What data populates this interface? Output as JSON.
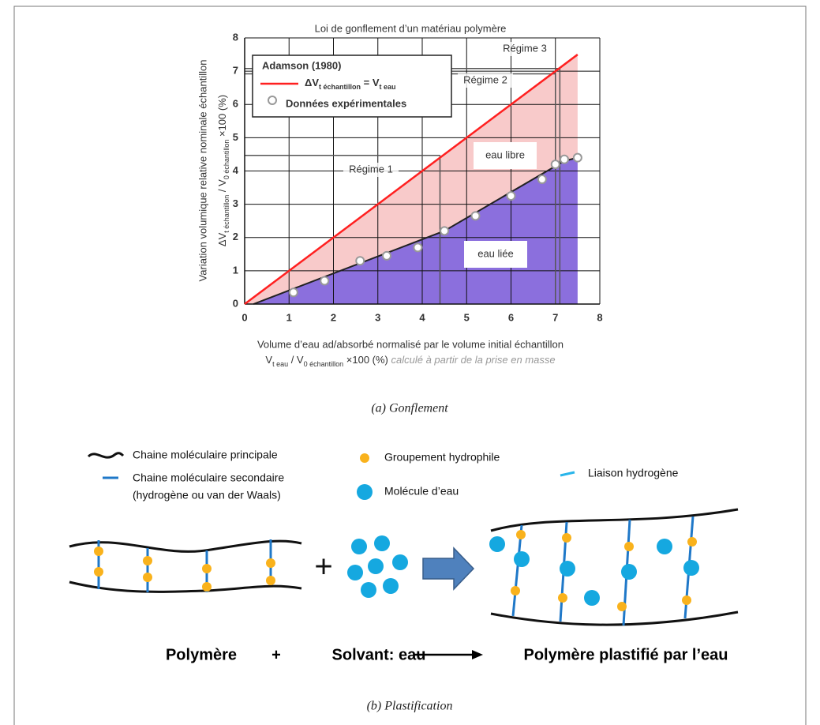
{
  "chart_data": {
    "type": "line",
    "title": "Loi de gonflement d’un matériau polymère",
    "y_label": [
      "Variation volumique relative nominale échantillon",
      [
        {
          "text": "ΔV"
        },
        {
          "text": "t échantillon",
          "sub": true
        },
        {
          "text": " / V"
        },
        {
          "text": "0 échantillon",
          "sub": true
        },
        {
          "text": " ×100 (%)"
        }
      ]
    ],
    "x_label": [
      "Volume d’eau ad/absorbé normalisé par le volume initial échantillon",
      [
        {
          "text": "V"
        },
        {
          "text": "t eau",
          "sub": true
        },
        {
          "text": " / V"
        },
        {
          "text": "0 échantillon",
          "sub": true
        },
        {
          "text": " ×100 (%) "
        }
      ]
    ],
    "x_label_note": "calculé à partir de la prise en masse",
    "xlim": [
      0,
      8
    ],
    "ylim": [
      0,
      8
    ],
    "xticks": [
      0,
      1,
      2,
      3,
      4,
      5,
      6,
      7,
      8
    ],
    "yticks": [
      0,
      1,
      2,
      3,
      4,
      5,
      6,
      7,
      8
    ],
    "grid": true,
    "legend_title": "Adamson (1980)",
    "series": [
      {
        "name": [
          {
            "text": "ΔV"
          },
          {
            "text": "t échantillon",
            "sub": true
          },
          {
            "text": " = V"
          },
          {
            "text": "t eau",
            "sub": true
          }
        ],
        "type": "line",
        "color": "#ff2020",
        "x": [
          0,
          7.5
        ],
        "y": [
          0,
          7.5
        ]
      },
      {
        "name": "Données expérimentales",
        "type": "scatter",
        "color": "#999999",
        "x": [
          1.1,
          1.8,
          2.6,
          3.2,
          3.9,
          4.5,
          5.2,
          6.0,
          6.7,
          7.0,
          7.2,
          7.5
        ],
        "y": [
          0.35,
          0.7,
          1.3,
          1.45,
          1.7,
          2.2,
          2.65,
          3.25,
          3.75,
          4.2,
          4.35,
          4.4
        ]
      }
    ],
    "areas": [
      {
        "label": "eau liée",
        "color": "#8b6fdd",
        "x": [
          0.2,
          4.5,
          7.2,
          7.5
        ],
        "y": [
          0,
          2.2,
          4.3,
          4.4
        ]
      },
      {
        "label": "eau libre",
        "color": "#f8caca"
      }
    ],
    "regimes": [
      {
        "label": "Régime 1",
        "x": 4.4,
        "y": 4.47
      },
      {
        "label": "Régime 2",
        "x": 7.0,
        "y": 6.92
      },
      {
        "label": "Régime 3",
        "x": 7.1,
        "y": 7.08
      }
    ]
  },
  "captions": {
    "a": "(a) Gonflement",
    "b": "(b) Plastification"
  },
  "legend": {
    "main_chain": "Chaine moléculaire principale",
    "side_chain": [
      "Chaine moléculaire secondaire",
      "(hydrogène ou van der Waals)"
    ],
    "hydrophilic": "Groupement hydrophile",
    "water": "Molécule d’eau",
    "hbond": "Liaison hydrogène"
  },
  "diagram": {
    "plus": "+"
  },
  "equation": {
    "reactant": "Polymère",
    "plus": "+",
    "solvent": "Solvant: eau",
    "product": "Polymère plastifié par l’eau"
  }
}
